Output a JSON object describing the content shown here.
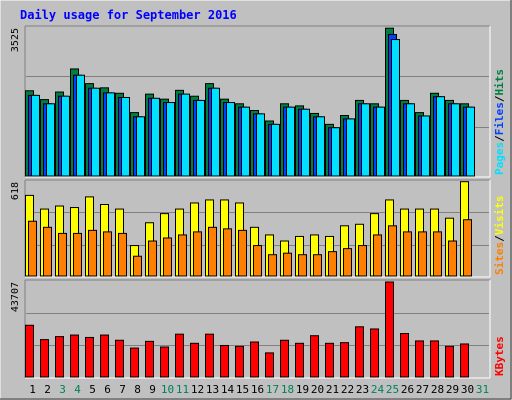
{
  "title": "Daily usage for September 2016",
  "colors": {
    "background": "#c0c0c0",
    "hits": "#008040",
    "files": "#0040ff",
    "pages": "#00e0ff",
    "visits": "#ffff00",
    "sites": "#ff8000",
    "kbytes": "#ff0000",
    "title": "#0000ff",
    "weekend_label": "#00805c",
    "weekday_label": "#000000"
  },
  "chart_data": [
    {
      "type": "bar",
      "panel": "hits-files-pages",
      "y_max_label": "3525",
      "ylim": [
        0,
        3525
      ],
      "legend_labels": [
        "Pages",
        "Files",
        "Hits"
      ],
      "legend_separator": "/",
      "categories": [
        1,
        2,
        3,
        4,
        5,
        6,
        7,
        8,
        9,
        10,
        11,
        12,
        13,
        14,
        15,
        16,
        17,
        18,
        19,
        20,
        21,
        22,
        23,
        24,
        25,
        26,
        27,
        28,
        29,
        30
      ],
      "series": [
        {
          "name": "Hits",
          "values": [
            2030,
            1820,
            2000,
            2550,
            2200,
            2100,
            1970,
            1510,
            1950,
            1830,
            2040,
            1900,
            2200,
            1830,
            1720,
            1560,
            1310,
            1720,
            1670,
            1490,
            1230,
            1440,
            1800,
            1720,
            3520,
            1800,
            1510,
            1970,
            1800,
            1720
          ]
        },
        {
          "name": "Files",
          "values": [
            1920,
            1720,
            1900,
            2400,
            2090,
            1980,
            1870,
            1410,
            1850,
            1750,
            1950,
            1800,
            2090,
            1750,
            1640,
            1480,
            1230,
            1640,
            1590,
            1410,
            1150,
            1360,
            1720,
            1640,
            3370,
            1720,
            1430,
            1890,
            1720,
            1640
          ]
        },
        {
          "name": "Pages",
          "values": [
            1920,
            1720,
            1900,
            2400,
            2090,
            1980,
            1870,
            1410,
            1850,
            1750,
            1950,
            1800,
            2090,
            1750,
            1640,
            1480,
            1230,
            1640,
            1590,
            1410,
            1150,
            1360,
            1720,
            1640,
            3250,
            1720,
            1430,
            1890,
            1720,
            1640
          ]
        }
      ]
    },
    {
      "type": "bar",
      "panel": "visits-sites",
      "y_max_label": "618",
      "ylim": [
        0,
        618
      ],
      "legend_labels": [
        "Sites",
        "Visits"
      ],
      "legend_separator": "/",
      "categories": [
        1,
        2,
        3,
        4,
        5,
        6,
        7,
        8,
        9,
        10,
        11,
        12,
        13,
        14,
        15,
        16,
        17,
        18,
        19,
        20,
        21,
        22,
        23,
        24,
        25,
        26,
        27,
        28,
        29,
        30
      ],
      "series": [
        {
          "name": "Visits",
          "values": [
            530,
            440,
            460,
            450,
            520,
            470,
            440,
            200,
            350,
            410,
            440,
            480,
            500,
            500,
            480,
            320,
            270,
            230,
            260,
            270,
            260,
            330,
            340,
            410,
            500,
            440,
            440,
            440,
            380,
            620
          ]
        },
        {
          "name": "Sites",
          "values": [
            360,
            320,
            280,
            280,
            300,
            290,
            280,
            130,
            230,
            250,
            270,
            290,
            320,
            310,
            300,
            200,
            140,
            150,
            140,
            140,
            160,
            180,
            200,
            270,
            330,
            290,
            290,
            290,
            230,
            370
          ]
        }
      ]
    },
    {
      "type": "bar",
      "panel": "kbytes",
      "y_max_label": "43707",
      "ylim": [
        0,
        43707
      ],
      "legend_labels": [
        "KBytes"
      ],
      "legend_separator": "/",
      "categories": [
        1,
        2,
        3,
        4,
        5,
        6,
        7,
        8,
        9,
        10,
        11,
        12,
        13,
        14,
        15,
        16,
        17,
        18,
        19,
        20,
        21,
        22,
        23,
        24,
        25,
        26,
        27,
        28,
        29,
        30
      ],
      "series": [
        {
          "name": "KBytes",
          "values": [
            23800,
            17200,
            18600,
            19300,
            18200,
            19300,
            16900,
            13300,
            16400,
            13800,
            19700,
            15500,
            19700,
            14500,
            14100,
            16100,
            11100,
            16900,
            15500,
            19000,
            15500,
            15800,
            23100,
            22100,
            43700,
            20000,
            16600,
            16600,
            14100,
            15200
          ]
        }
      ]
    }
  ],
  "x_labels": [
    {
      "t": "1",
      "w": false
    },
    {
      "t": "2",
      "w": false
    },
    {
      "t": "3",
      "w": true
    },
    {
      "t": "4",
      "w": true
    },
    {
      "t": "5",
      "w": false
    },
    {
      "t": "6",
      "w": false
    },
    {
      "t": "7",
      "w": false
    },
    {
      "t": "8",
      "w": false
    },
    {
      "t": "9",
      "w": false
    },
    {
      "t": "10",
      "w": true
    },
    {
      "t": "11",
      "w": true
    },
    {
      "t": "12",
      "w": false
    },
    {
      "t": "13",
      "w": false
    },
    {
      "t": "14",
      "w": false
    },
    {
      "t": "15",
      "w": false
    },
    {
      "t": "16",
      "w": false
    },
    {
      "t": "17",
      "w": true
    },
    {
      "t": "18",
      "w": true
    },
    {
      "t": "19",
      "w": false
    },
    {
      "t": "20",
      "w": false
    },
    {
      "t": "21",
      "w": false
    },
    {
      "t": "22",
      "w": false
    },
    {
      "t": "23",
      "w": false
    },
    {
      "t": "24",
      "w": true
    },
    {
      "t": "25",
      "w": true
    },
    {
      "t": "26",
      "w": false
    },
    {
      "t": "27",
      "w": false
    },
    {
      "t": "28",
      "w": false
    },
    {
      "t": "29",
      "w": false
    },
    {
      "t": "30",
      "w": false
    },
    {
      "t": "31",
      "w": true
    }
  ]
}
